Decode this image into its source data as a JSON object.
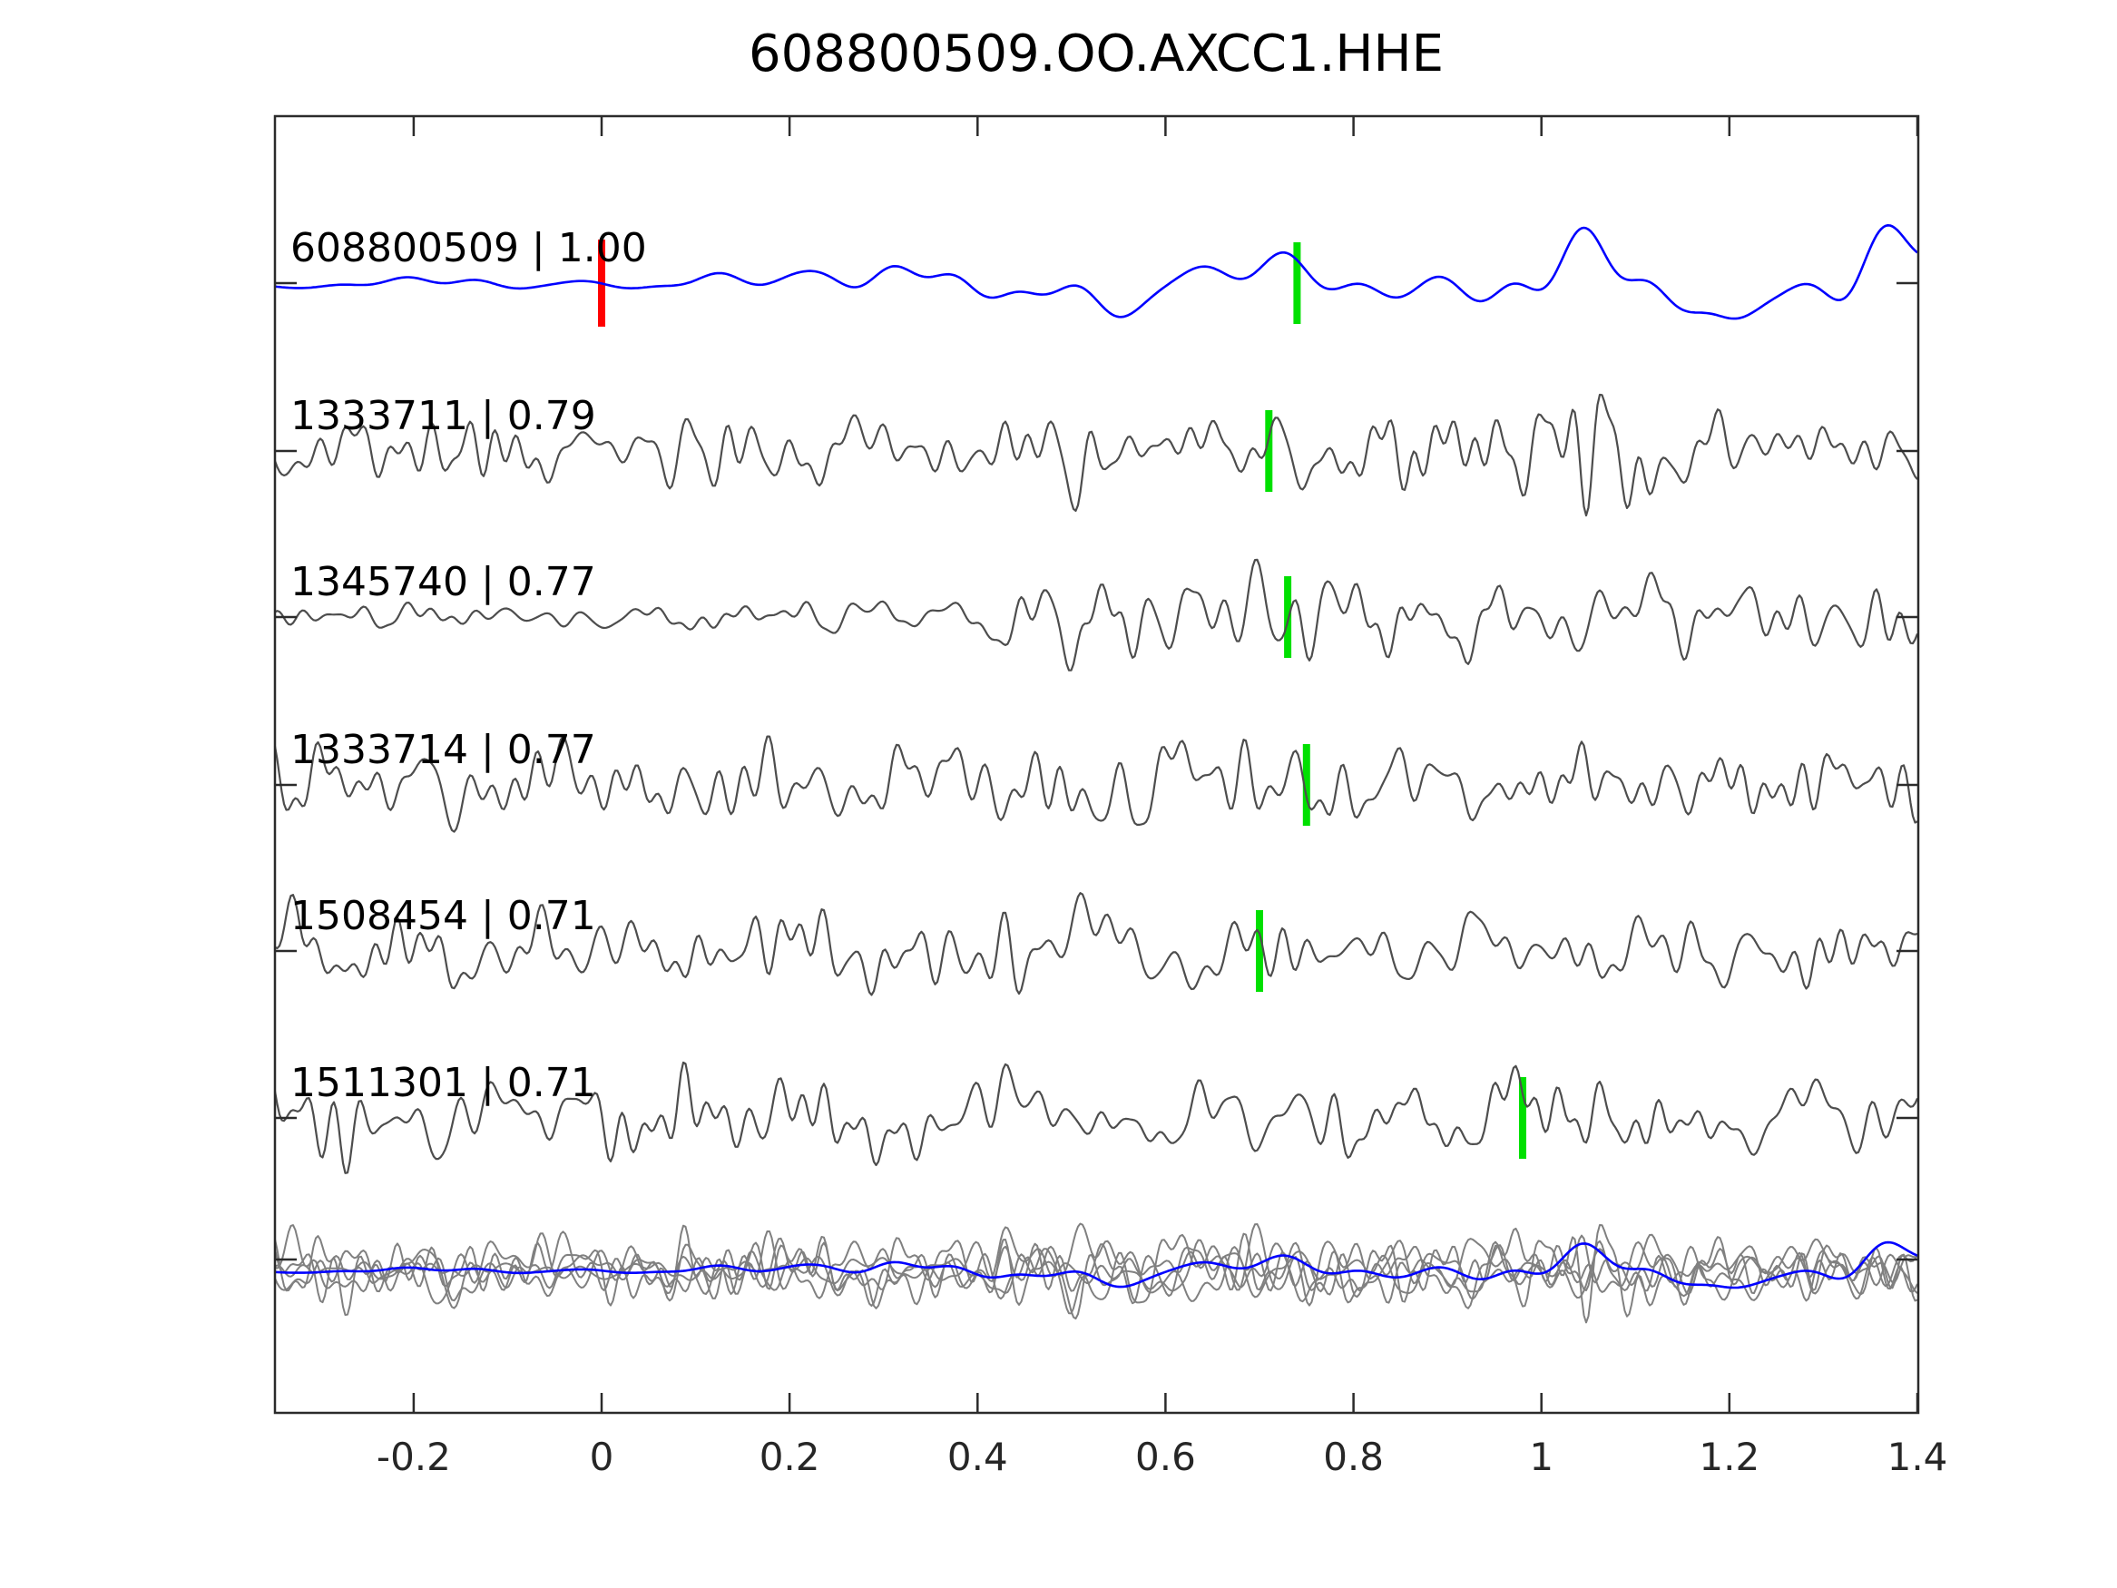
{
  "page": {
    "background": "#ffffff"
  },
  "chart_data": {
    "type": "line",
    "subtype": "seismic-waveform-template-match",
    "title": "608800509.OO.AXCC1.HHE",
    "xlabel": "",
    "ylabel": "",
    "xlim": [
      -0.35,
      1.4
    ],
    "x_ticks": [
      -0.2,
      0,
      0.2,
      0.4,
      0.6,
      0.8,
      1,
      1.2,
      1.4
    ],
    "x_tick_labels": [
      "-0.2",
      "0",
      "0.2",
      "0.4",
      "0.6",
      "0.8",
      "1",
      "1.2",
      "1.4"
    ],
    "grid": false,
    "legend": false,
    "rows": 7,
    "traces": [
      {
        "event_id": "608800509",
        "correlation": "1.00",
        "label": "608800509 | 1.00",
        "color": "#0000ff",
        "kind": "template",
        "line_style": "smooth",
        "amplitude_profile": "quiet-before-zero-growing",
        "template_time_marker": {
          "time": 0.0,
          "color": "#ff0000"
        },
        "pick_marker": {
          "time": 0.74,
          "color": "#00e000"
        }
      },
      {
        "event_id": "1333711",
        "correlation": "0.79",
        "label": "1333711 | 0.79",
        "color": "#4d4d4d",
        "kind": "detection",
        "line_style": "noisy",
        "amplitude_profile": "uniform",
        "pick_marker": {
          "time": 0.71,
          "color": "#00e000"
        }
      },
      {
        "event_id": "1345740",
        "correlation": "0.77",
        "label": "1345740 | 0.77",
        "color": "#4d4d4d",
        "kind": "detection",
        "line_style": "noisy",
        "amplitude_profile": "quiet-start-growing",
        "pick_marker": {
          "time": 0.73,
          "color": "#00e000"
        }
      },
      {
        "event_id": "1333714",
        "correlation": "0.77",
        "label": "1333714 | 0.77",
        "color": "#4d4d4d",
        "kind": "detection",
        "line_style": "noisy",
        "amplitude_profile": "uniform",
        "pick_marker": {
          "time": 0.75,
          "color": "#00e000"
        }
      },
      {
        "event_id": "1508454",
        "correlation": "0.71",
        "label": "1508454 | 0.71",
        "color": "#4d4d4d",
        "kind": "detection",
        "line_style": "noisy",
        "amplitude_profile": "uniform",
        "pick_marker": {
          "time": 0.7,
          "color": "#00e000"
        }
      },
      {
        "event_id": "1511301",
        "correlation": "0.71",
        "label": "1511301 | 0.71",
        "color": "#4d4d4d",
        "kind": "detection",
        "line_style": "noisy",
        "amplitude_profile": "uniform",
        "pick_marker": {
          "time": 0.98,
          "color": "#00e000"
        }
      }
    ],
    "overlay_row": {
      "description": "All detection traces overlaid in gray with the template trace in blue",
      "gray_color": "#808080",
      "template_color": "#0000ff",
      "gray_trace_count": 5
    }
  },
  "colors": {
    "frame": "#2b2b2b",
    "tick": "#2b2b2b",
    "tick_label": "#262626",
    "title": "#000000",
    "trace_label": "#000000",
    "template_trace": "#0000ff",
    "detection_trace": "#4d4d4d",
    "overlay_gray": "#808080",
    "pick_marker": "#00e000",
    "template_marker": "#ff0000"
  }
}
